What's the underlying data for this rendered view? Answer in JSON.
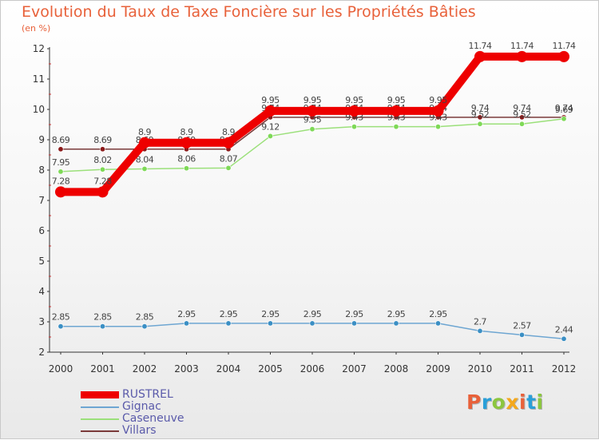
{
  "header": {
    "title": "Evolution du Taux de Taxe Foncière sur les Propriétés Bâties",
    "unit": "(en %)"
  },
  "logo": {
    "text": "Proxiti",
    "colors": [
      "#e8613a",
      "#2a9fd8",
      "#8cc63f",
      "#f4a81d",
      "#e8613a",
      "#2a9fd8",
      "#8cc63f"
    ]
  },
  "chart_data": {
    "type": "line",
    "title": "Evolution du Taux de Taxe Foncière sur les Propriétés Bâties",
    "ylabel": "(en %)",
    "xlabel": "",
    "x": [
      "2000",
      "2001",
      "2002",
      "2003",
      "2004",
      "2005",
      "2006",
      "2007",
      "2008",
      "2009",
      "2010",
      "2011",
      "2012"
    ],
    "ylim": [
      2,
      12
    ],
    "yticks": [
      "2",
      "3",
      "4",
      "5",
      "6",
      "7",
      "8",
      "9",
      "10",
      "11",
      "12"
    ],
    "grid": false,
    "legend_position": "bottom-left",
    "series": [
      {
        "name": "Villars",
        "color": "#8b1a1a",
        "line_color": "#7a3a3a",
        "values": [
          8.69,
          8.69,
          8.69,
          8.69,
          8.69,
          9.74,
          9.74,
          9.74,
          9.74,
          9.74,
          9.74,
          9.74,
          9.74
        ],
        "labels": [
          "8.69",
          "8.69",
          "8.69",
          "8.69",
          "8.69",
          "9.74",
          "9.74",
          "9.74",
          "9.74",
          "9.74",
          "9.74",
          "9.74",
          "9.74"
        ]
      },
      {
        "name": "Caseneuve",
        "color": "#7ed957",
        "line_color": "#9be07a",
        "values": [
          7.95,
          8.02,
          8.04,
          8.06,
          8.07,
          9.12,
          9.35,
          9.43,
          9.43,
          9.43,
          9.52,
          9.52,
          9.69
        ],
        "labels": [
          "7.95",
          "8.02",
          "8.04",
          "8.06",
          "8.07",
          "9.12",
          "9.35",
          "9.43",
          "9.43",
          "9.43",
          "9.52",
          "9.52",
          "9.69"
        ]
      },
      {
        "name": "Gignac",
        "color": "#3b8fc4",
        "line_color": "#6ea6d2",
        "values": [
          2.85,
          2.85,
          2.85,
          2.95,
          2.95,
          2.95,
          2.95,
          2.95,
          2.95,
          2.95,
          2.7,
          2.57,
          2.44
        ],
        "labels": [
          "2.85",
          "2.85",
          "2.85",
          "2.95",
          "2.95",
          "2.95",
          "2.95",
          "2.95",
          "2.95",
          "2.95",
          "2.7",
          "2.57",
          "2.44"
        ]
      },
      {
        "name": "RUSTREL",
        "color": "#ee0000",
        "line_color": "#ee0000",
        "values": [
          7.28,
          7.28,
          8.9,
          8.9,
          8.9,
          9.95,
          9.95,
          9.95,
          9.95,
          9.95,
          11.74,
          11.74,
          11.74
        ],
        "labels": [
          "7.28",
          "7.28",
          "8.9",
          "8.9",
          "8.9",
          "9.95",
          "9.95",
          "9.95",
          "9.95",
          "9.95",
          "11.74",
          "11.74",
          "11.74"
        ]
      }
    ]
  },
  "legend": {
    "items": [
      {
        "label": "RUSTREL",
        "color": "#ee0000"
      },
      {
        "label": "Gignac",
        "color": "#6ea6d2"
      },
      {
        "label": "Caseneuve",
        "color": "#9be07a"
      },
      {
        "label": "Villars",
        "color": "#7a3a3a"
      }
    ]
  }
}
